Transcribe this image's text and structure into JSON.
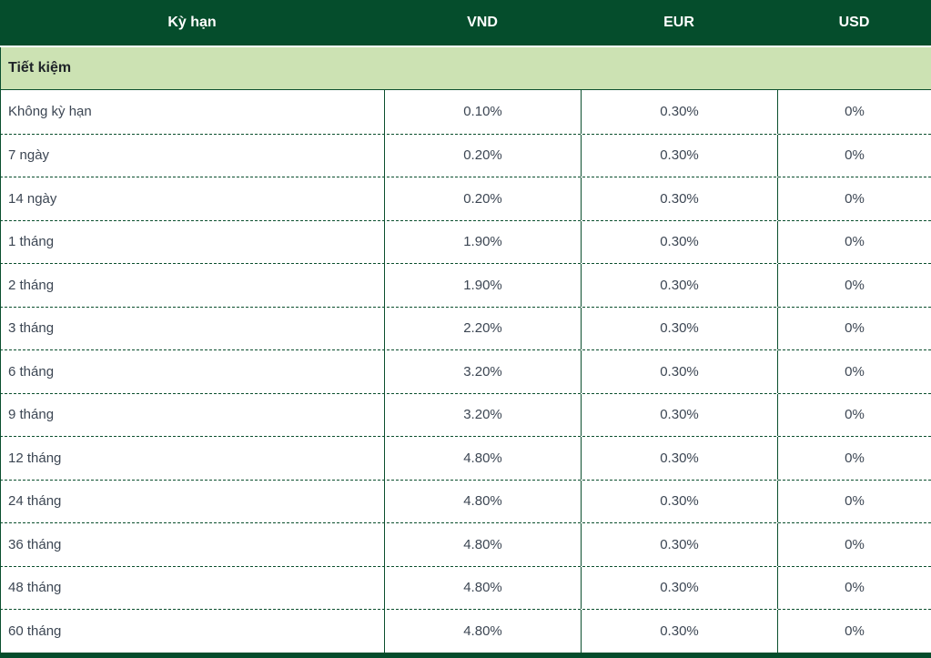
{
  "colors": {
    "header_bg": "#054d2c",
    "header_text": "#ffffff",
    "section_bg": "#cce2b3",
    "section_text": "#1f2428",
    "border_green": "#0b4f2e",
    "cell_text": "#3c4653",
    "row_bg": "#ffffff"
  },
  "table": {
    "columns": [
      "Kỳ hạn",
      "VND",
      "EUR",
      "USD"
    ],
    "section_label": "Tiết kiệm",
    "rows": [
      {
        "term": "Không kỳ hạn",
        "vnd": "0.10%",
        "eur": "0.30%",
        "usd": "0%"
      },
      {
        "term": "7 ngày",
        "vnd": "0.20%",
        "eur": "0.30%",
        "usd": "0%"
      },
      {
        "term": "14 ngày",
        "vnd": "0.20%",
        "eur": "0.30%",
        "usd": "0%"
      },
      {
        "term": "1 tháng",
        "vnd": "1.90%",
        "eur": "0.30%",
        "usd": "0%"
      },
      {
        "term": "2 tháng",
        "vnd": "1.90%",
        "eur": "0.30%",
        "usd": "0%"
      },
      {
        "term": "3 tháng",
        "vnd": "2.20%",
        "eur": "0.30%",
        "usd": "0%"
      },
      {
        "term": "6 tháng",
        "vnd": "3.20%",
        "eur": "0.30%",
        "usd": "0%"
      },
      {
        "term": "9 tháng",
        "vnd": "3.20%",
        "eur": "0.30%",
        "usd": "0%"
      },
      {
        "term": "12 tháng",
        "vnd": "4.80%",
        "eur": "0.30%",
        "usd": "0%"
      },
      {
        "term": "24 tháng",
        "vnd": "4.80%",
        "eur": "0.30%",
        "usd": "0%"
      },
      {
        "term": "36 tháng",
        "vnd": "4.80%",
        "eur": "0.30%",
        "usd": "0%"
      },
      {
        "term": "48 tháng",
        "vnd": "4.80%",
        "eur": "0.30%",
        "usd": "0%"
      },
      {
        "term": "60 tháng",
        "vnd": "4.80%",
        "eur": "0.30%",
        "usd": "0%"
      }
    ]
  }
}
